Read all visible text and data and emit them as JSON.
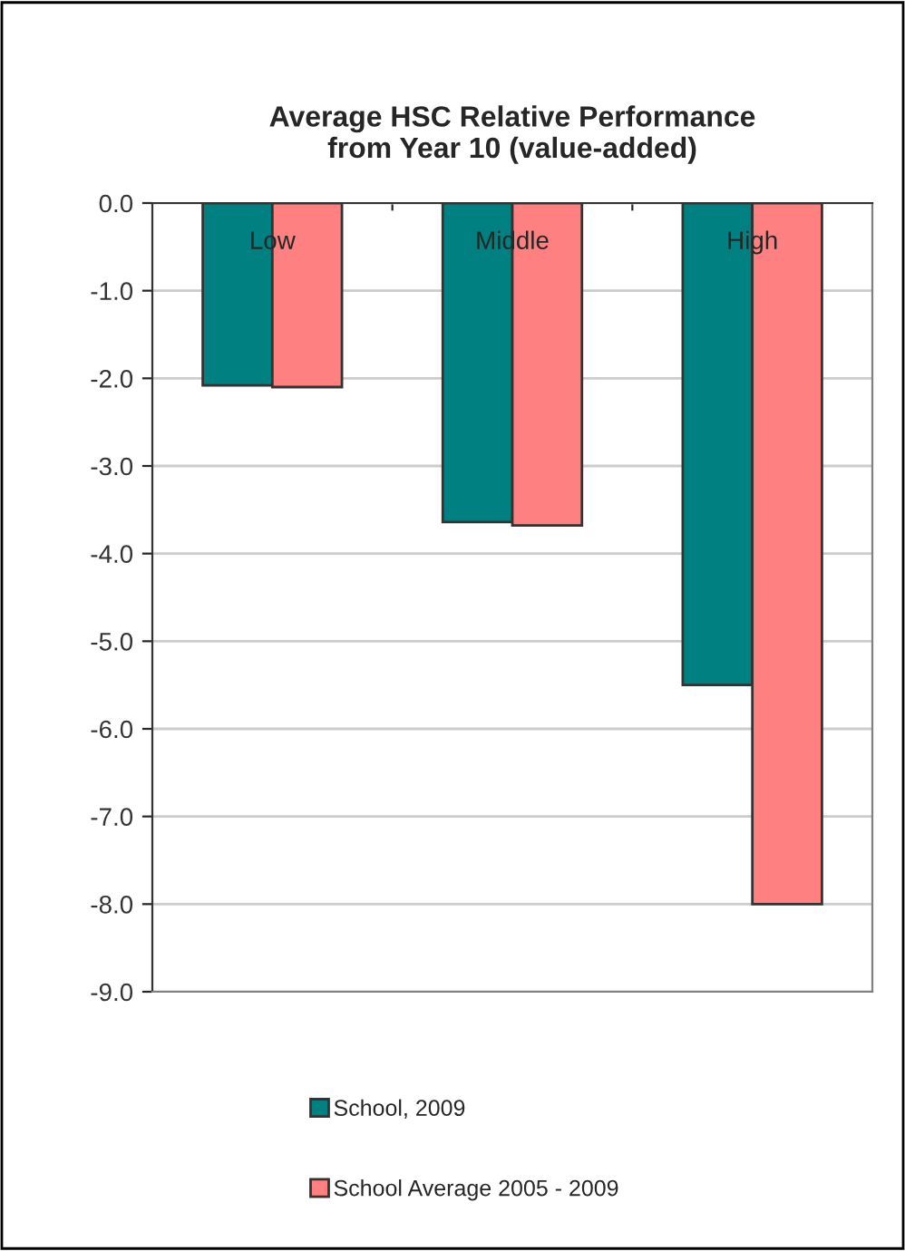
{
  "chart_data": {
    "type": "bar",
    "title": "Average HSC Relative Performance\nfrom Year 10 (value-added)",
    "categories": [
      "Low",
      "Middle",
      "High"
    ],
    "series": [
      {
        "name": "School, 2009",
        "color": "#008080",
        "values": [
          -2.08,
          -3.64,
          -5.5
        ]
      },
      {
        "name": "School Average 2005 - 2009",
        "color": "#ff8080",
        "values": [
          -2.1,
          -3.68,
          -8.0
        ]
      }
    ],
    "ylim": [
      -9.0,
      0.0
    ],
    "yticks": [
      {
        "value": 0,
        "label": "0.0"
      },
      {
        "value": -1,
        "label": "-1.0"
      },
      {
        "value": -2,
        "label": "-2.0"
      },
      {
        "value": -3,
        "label": "-3.0"
      },
      {
        "value": -4,
        "label": "-4.0"
      },
      {
        "value": -5,
        "label": "-5.0"
      },
      {
        "value": -6,
        "label": "-6.0"
      },
      {
        "value": -7,
        "label": "-7.0"
      },
      {
        "value": -8,
        "label": "-8.0"
      },
      {
        "value": -9,
        "label": "-9.0"
      }
    ],
    "grid": "y",
    "legend": "bottom"
  }
}
